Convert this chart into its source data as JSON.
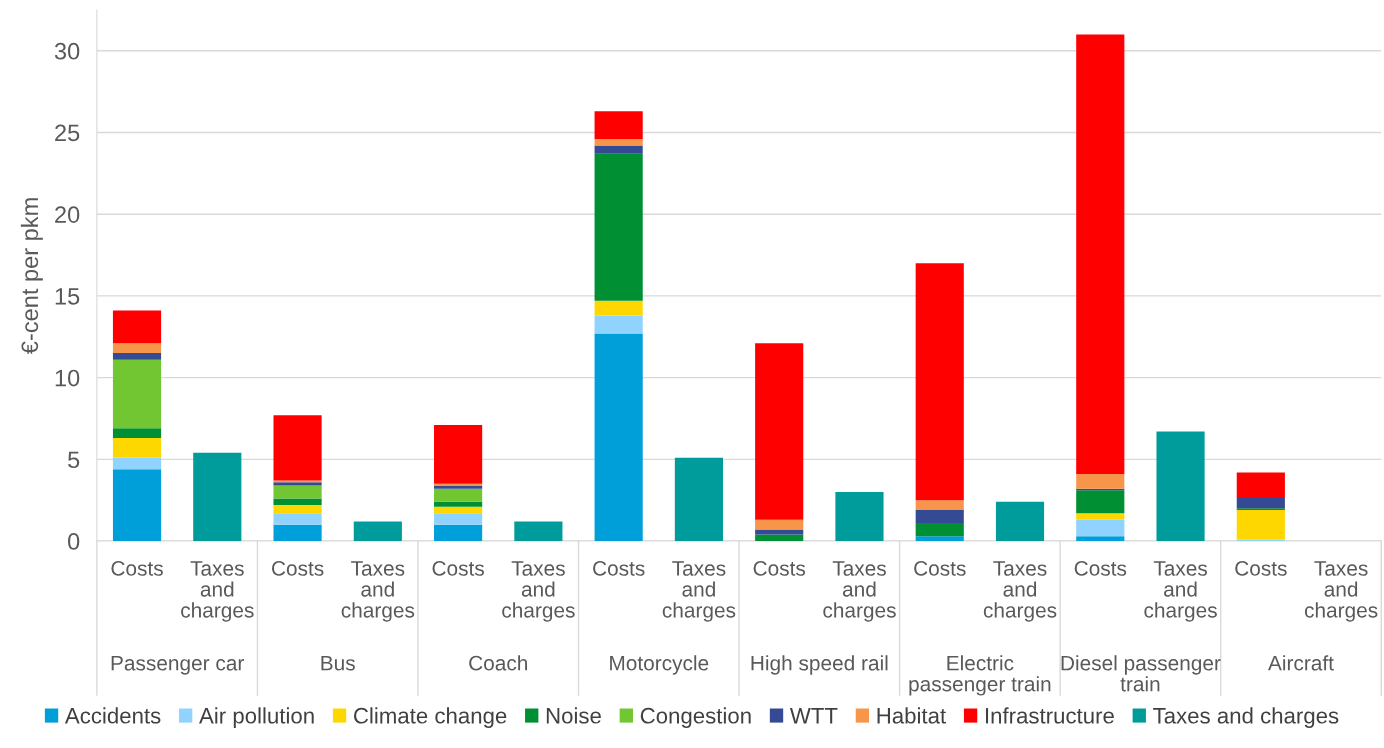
{
  "chart_data": {
    "type": "bar",
    "stacked": true,
    "ylabel": "€-cent per pkm",
    "categories": [
      "Costs",
      "Taxes\nand\ncharges",
      "Costs",
      "Taxes\nand\ncharges",
      "Costs",
      "Taxes\nand\ncharges",
      "Costs",
      "Taxes\nand\ncharges",
      "Costs",
      "Taxes\nand\ncharges",
      "Costs",
      "Taxes\nand\ncharges",
      "Costs",
      "Taxes\nand\ncharges",
      "Costs",
      "Taxes\nand\ncharges"
    ],
    "annotations": [
      "Passenger car",
      "Bus",
      "Coach",
      "Motorcycle",
      "High speed rail",
      "Electric\npassenger train",
      "Diesel passenger\ntrain",
      "Aircraft"
    ],
    "series": [
      {
        "name": "Accidents",
        "color": "#009fda",
        "values": [
          4.4,
          null,
          1.0,
          null,
          1.0,
          null,
          12.7,
          null,
          0,
          null,
          0.3,
          null,
          0.3,
          null,
          0,
          null
        ]
      },
      {
        "name": "Air pollution",
        "color": "#8fd3fe",
        "values": [
          0.7,
          null,
          0.7,
          null,
          0.7,
          null,
          1.1,
          null,
          0,
          null,
          0,
          null,
          1.0,
          null,
          0.1,
          null
        ]
      },
      {
        "name": "Climate change",
        "color": "#ffd700",
        "values": [
          1.2,
          null,
          0.5,
          null,
          0.4,
          null,
          0.9,
          null,
          0,
          null,
          0,
          null,
          0.4,
          null,
          1.8,
          null
        ]
      },
      {
        "name": "Noise",
        "color": "#008f33",
        "values": [
          0.6,
          null,
          0.4,
          null,
          0.3,
          null,
          9.0,
          null,
          0.4,
          null,
          0.8,
          null,
          1.4,
          null,
          0.1,
          null
        ]
      },
      {
        "name": "Congestion",
        "color": "#72c632",
        "values": [
          4.2,
          null,
          0.8,
          null,
          0.8,
          null,
          0,
          null,
          0,
          null,
          0,
          null,
          0,
          null,
          0,
          null
        ]
      },
      {
        "name": "WTT",
        "color": "#344a95",
        "values": [
          0.4,
          null,
          0.2,
          null,
          0.2,
          null,
          0.5,
          null,
          0.3,
          null,
          0.8,
          null,
          0.1,
          null,
          0.7,
          null
        ]
      },
      {
        "name": "Habitat",
        "color": "#f7964a",
        "values": [
          0.6,
          null,
          0.1,
          null,
          0.1,
          null,
          0.4,
          null,
          0.6,
          null,
          0.6,
          null,
          0.9,
          null,
          0,
          null
        ]
      },
      {
        "name": "Infrastructure",
        "color": "#ff0000",
        "values": [
          2.0,
          null,
          4.0,
          null,
          3.6,
          null,
          1.7,
          null,
          10.8,
          null,
          14.5,
          null,
          26.9,
          null,
          1.5,
          null
        ]
      },
      {
        "name": "Taxes and charges",
        "color": "#009c9c",
        "values": [
          null,
          5.4,
          null,
          1.2,
          null,
          1.2,
          null,
          5.1,
          null,
          3.0,
          null,
          2.4,
          null,
          6.7,
          null,
          0
        ]
      }
    ],
    "ylim": [
      0,
      32.5
    ],
    "yticks": [
      0,
      5,
      10,
      15,
      20,
      25,
      30
    ],
    "grid": "y",
    "legend": "bottom"
  }
}
